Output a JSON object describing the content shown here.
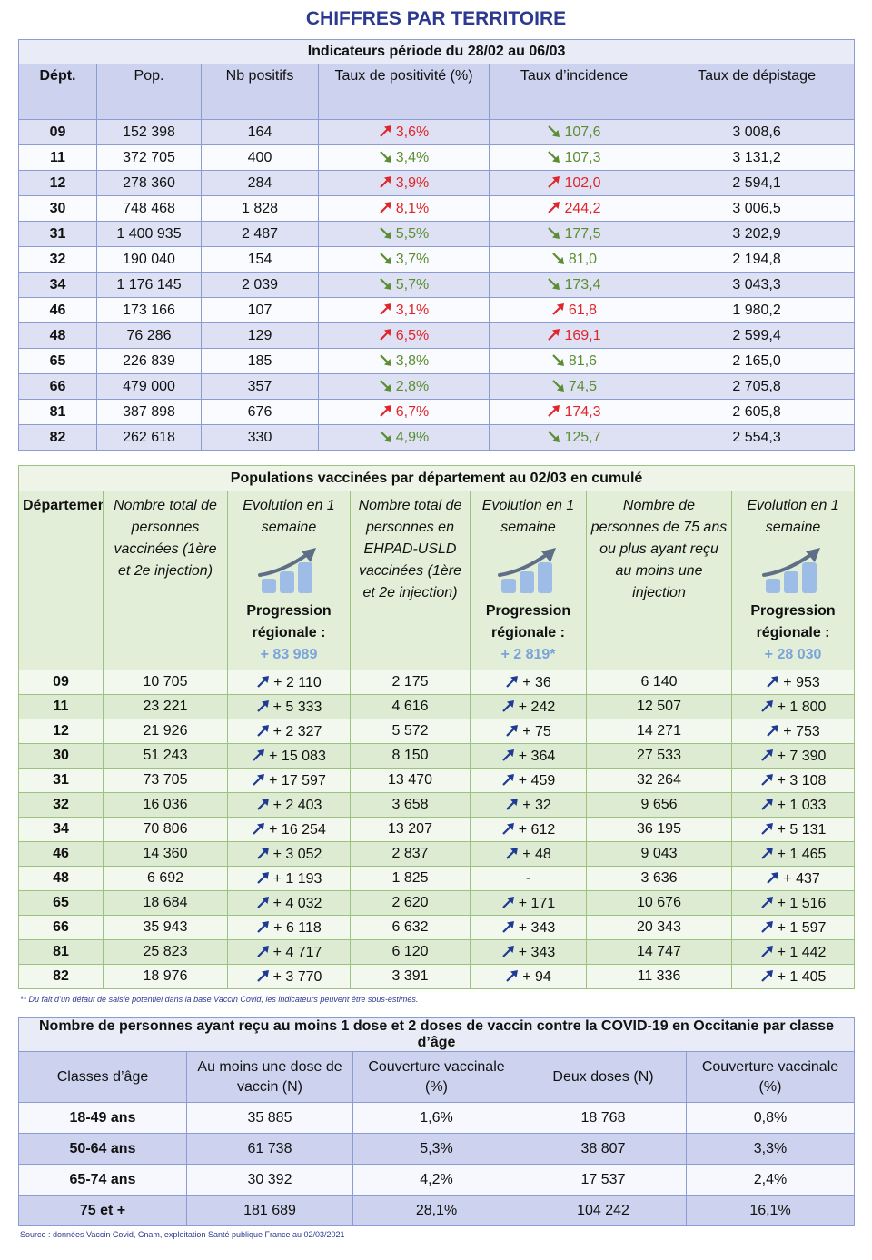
{
  "title": "CHIFFRES PAR TERRITOIRE",
  "table1": {
    "caption": "Indicateurs période du 28/02 au 06/03",
    "headers": [
      "Dépt.",
      "Pop.",
      "Nb positifs",
      "Taux de positivité (%)",
      "Taux d’incidence",
      "Taux de dépistage"
    ],
    "trend_colors": {
      "up": "#e0262b",
      "down": "#5b8e31"
    },
    "rows": [
      [
        "09",
        "152 398",
        "164",
        "3,6%",
        "107,6",
        "3 008,6"
      ],
      [
        "11",
        "372 705",
        "400",
        "3,4%",
        "107,3",
        "3 131,2"
      ],
      [
        "12",
        "278 360",
        "284",
        "3,9%",
        "102,0",
        "2 594,1"
      ],
      [
        "30",
        "748 468",
        "1 828",
        "8,1%",
        "244,2",
        "3 006,5"
      ],
      [
        "31",
        "1 400 935",
        "2 487",
        "5,5%",
        "177,5",
        "3 202,9"
      ],
      [
        "32",
        "190 040",
        "154",
        "3,7%",
        "81,0",
        "2 194,8"
      ],
      [
        "34",
        "1 176 145",
        "2 039",
        "5,7%",
        "173,4",
        "3 043,3"
      ],
      [
        "46",
        "173 166",
        "107",
        "3,1%",
        "61,8",
        "1 980,2"
      ],
      [
        "48",
        "76 286",
        "129",
        "6,5%",
        "169,1",
        "2 599,4"
      ],
      [
        "65",
        "226 839",
        "185",
        "3,8%",
        "81,6",
        "2 165,0"
      ],
      [
        "66",
        "479 000",
        "357",
        "2,8%",
        "74,5",
        "2 705,8"
      ],
      [
        "81",
        "387 898",
        "676",
        "6,7%",
        "174,3",
        "2 605,8"
      ],
      [
        "82",
        "262 618",
        "330",
        "4,9%",
        "125,7",
        "2 554,3"
      ]
    ],
    "trends": [
      [
        "up",
        "down"
      ],
      [
        "down",
        "down"
      ],
      [
        "up",
        "up"
      ],
      [
        "up",
        "up"
      ],
      [
        "down",
        "down"
      ],
      [
        "down",
        "down"
      ],
      [
        "down",
        "down"
      ],
      [
        "up",
        "up"
      ],
      [
        "up",
        "up"
      ],
      [
        "down",
        "down"
      ],
      [
        "down",
        "down"
      ],
      [
        "up",
        "up"
      ],
      [
        "down",
        "down"
      ]
    ]
  },
  "table2": {
    "caption": "Populations vaccinées par département au 02/03 en cumulé",
    "headers": [
      "Département",
      "Nombre total de personnes vaccinées (1ère et 2e injection)",
      {
        "label": "Evolution en 1 semaine",
        "note": "Progression régionale :",
        "total": "+ 83 989"
      },
      "Nombre total de personnes en EHPAD-USLD vaccinées (1ère et 2e injection)",
      {
        "label": "Evolution en 1 semaine",
        "note": "Progression régionale :",
        "total": "+ 2 819*"
      },
      "Nombre de personnes de 75 ans ou plus ayant reçu au moins une injection",
      {
        "label": "Evolution en 1 semaine",
        "note": "Progression régionale :",
        "total": "+ 28 030"
      }
    ],
    "rows": [
      [
        "09",
        "10 705",
        "+ 2 110",
        "2 175",
        "+ 36",
        "6 140",
        "+ 953"
      ],
      [
        "11",
        "23 221",
        "+ 5 333",
        "4 616",
        "+ 242",
        "12 507",
        "+ 1 800"
      ],
      [
        "12",
        "21 926",
        "+ 2 327",
        "5 572",
        "+ 75",
        "14 271",
        "+ 753"
      ],
      [
        "30",
        "51 243",
        "+ 15 083",
        "8 150",
        "+ 364",
        "27 533",
        "+ 7 390"
      ],
      [
        "31",
        "73 705",
        "+ 17 597",
        "13 470",
        "+ 459",
        "32 264",
        "+ 3 108"
      ],
      [
        "32",
        "16 036",
        "+ 2 403",
        "3 658",
        "+ 32",
        "9 656",
        "+ 1 033"
      ],
      [
        "34",
        "70 806",
        "+ 16 254",
        "13 207",
        "+ 612",
        "36 195",
        "+ 5 131"
      ],
      [
        "46",
        "14 360",
        "+ 3 052",
        "2 837",
        "+ 48",
        "9 043",
        "+ 1 465"
      ],
      [
        "48",
        "6 692",
        "+ 1 193",
        "1 825",
        "-",
        "3 636",
        "+ 437"
      ],
      [
        "65",
        "18 684",
        "+ 4 032",
        "2 620",
        "+ 171",
        "10 676",
        "+ 1 516"
      ],
      [
        "66",
        "35 943",
        "+ 6 118",
        "6 632",
        "+ 343",
        "20 343",
        "+ 1 597"
      ],
      [
        "81",
        "25 823",
        "+ 4 717",
        "6 120",
        "+ 343",
        "14 747",
        "+ 1 442"
      ],
      [
        "82",
        "18 976",
        "+ 3 770",
        "3 391",
        "+ 94",
        "11 336",
        "+ 1 405"
      ]
    ],
    "footnote": "** Du fait d’un défaut de saisie potentiel dans la base Vaccin Covid, les indicateurs peuvent être sous-estimés."
  },
  "table3": {
    "caption": "Nombre de personnes ayant reçu au moins 1 dose et 2 doses de vaccin contre la COVID-19 en Occitanie par classe d’âge",
    "headers": [
      "Classes d’âge",
      "Au moins une dose de vaccin (N)",
      "Couverture vaccinale (%)",
      "Deux doses (N)",
      "Couverture vaccinale (%)"
    ],
    "rows": [
      [
        "18-49 ans",
        "35 885",
        "1,6%",
        "18 768",
        "0,8%"
      ],
      [
        "50-64 ans",
        "61 738",
        "5,3%",
        "38 807",
        "3,3%"
      ],
      [
        "65-74 ans",
        "30 392",
        "4,2%",
        "17 537",
        "2,4%"
      ],
      [
        "75 et +",
        "181 689",
        "28,1%",
        "104 242",
        "16,1%"
      ]
    ]
  },
  "source": "Source : données Vaccin Covid, Cnam, exploitation Santé publique France au 02/03/2021"
}
